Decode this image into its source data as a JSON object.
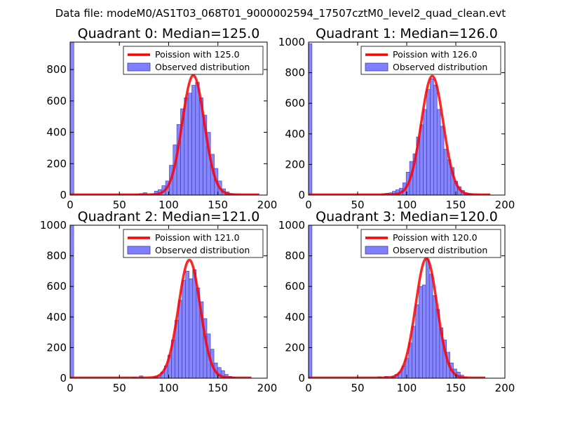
{
  "figure": {
    "suptitle": "Data file: modeM0/AS1T03_068T01_9000002594_17507cztM0_level2_quad_clean.evt",
    "colors": {
      "curve": "#ff0000",
      "bars": "#7f7fff",
      "bar_edge": "#3a3aa6"
    }
  },
  "chart_data": [
    {
      "type": "bar",
      "title": "Quadrant 0: Median=125.0",
      "xlim": [
        0,
        200
      ],
      "ylim": [
        0,
        975
      ],
      "xticks": [
        "0",
        "50",
        "100",
        "150",
        "200"
      ],
      "yticks": [
        0,
        200,
        400,
        600,
        800
      ],
      "legend": {
        "placement": "top-right",
        "curve_label": "Poission with 125.0",
        "bars_label": "Observed distribution"
      },
      "bin_width": 3.8,
      "bars": [
        {
          "x": 0,
          "h": 975
        },
        {
          "x": 66.5,
          "h": 5
        },
        {
          "x": 70.3,
          "h": 10
        },
        {
          "x": 74.1,
          "h": 15
        },
        {
          "x": 81.7,
          "h": 8
        },
        {
          "x": 85.5,
          "h": 25
        },
        {
          "x": 89.3,
          "h": 35
        },
        {
          "x": 93.1,
          "h": 60
        },
        {
          "x": 96.9,
          "h": 90
        },
        {
          "x": 100.7,
          "h": 190
        },
        {
          "x": 104.5,
          "h": 320
        },
        {
          "x": 108.3,
          "h": 450
        },
        {
          "x": 112.1,
          "h": 550
        },
        {
          "x": 115.9,
          "h": 620
        },
        {
          "x": 119.7,
          "h": 650
        },
        {
          "x": 123.5,
          "h": 700
        },
        {
          "x": 127.3,
          "h": 720
        },
        {
          "x": 131.1,
          "h": 620
        },
        {
          "x": 134.9,
          "h": 510
        },
        {
          "x": 138.7,
          "h": 400
        },
        {
          "x": 142.5,
          "h": 260
        },
        {
          "x": 146.3,
          "h": 170
        },
        {
          "x": 150.1,
          "h": 90
        },
        {
          "x": 153.9,
          "h": 40
        },
        {
          "x": 157.7,
          "h": 20
        },
        {
          "x": 161.5,
          "h": 8
        },
        {
          "x": 165.3,
          "h": 4
        }
      ],
      "curve": {
        "mu": 125,
        "peak": 760,
        "x_range": [
          0,
          192
        ]
      }
    },
    {
      "type": "bar",
      "title": "Quadrant 1: Median=126.0",
      "xlim": [
        0,
        200
      ],
      "ylim": [
        0,
        1000
      ],
      "xticks": [
        "0",
        "50",
        "100",
        "150",
        "200"
      ],
      "yticks": [
        0,
        200,
        400,
        600,
        800,
        1000
      ],
      "legend": {
        "placement": "top-right",
        "curve_label": "Poission with 126.0",
        "bars_label": "Observed distribution"
      },
      "bin_width": 3.5,
      "bars": [
        {
          "x": 0,
          "h": 990
        },
        {
          "x": 74.9,
          "h": 10
        },
        {
          "x": 78.4,
          "h": 12
        },
        {
          "x": 81.9,
          "h": 15
        },
        {
          "x": 85.4,
          "h": 25
        },
        {
          "x": 88.9,
          "h": 35
        },
        {
          "x": 92.4,
          "h": 45
        },
        {
          "x": 95.9,
          "h": 80
        },
        {
          "x": 99.4,
          "h": 150
        },
        {
          "x": 102.9,
          "h": 220
        },
        {
          "x": 106.4,
          "h": 270
        },
        {
          "x": 109.9,
          "h": 380
        },
        {
          "x": 113.4,
          "h": 460
        },
        {
          "x": 116.9,
          "h": 560
        },
        {
          "x": 120.4,
          "h": 690
        },
        {
          "x": 123.9,
          "h": 760
        },
        {
          "x": 127.4,
          "h": 720
        },
        {
          "x": 130.9,
          "h": 560
        },
        {
          "x": 134.4,
          "h": 450
        },
        {
          "x": 137.9,
          "h": 300
        },
        {
          "x": 141.4,
          "h": 230
        },
        {
          "x": 144.9,
          "h": 180
        },
        {
          "x": 148.4,
          "h": 90
        },
        {
          "x": 151.9,
          "h": 55
        },
        {
          "x": 155.4,
          "h": 30
        },
        {
          "x": 158.9,
          "h": 15
        },
        {
          "x": 162.4,
          "h": 10
        },
        {
          "x": 165.9,
          "h": 5
        }
      ],
      "curve": {
        "mu": 126,
        "peak": 775,
        "x_range": [
          0,
          185
        ]
      }
    },
    {
      "type": "bar",
      "title": "Quadrant 2: Median=121.0",
      "xlim": [
        0,
        200
      ],
      "ylim": [
        0,
        1000
      ],
      "xticks": [
        "0",
        "50",
        "100",
        "150",
        "200"
      ],
      "yticks": [
        0,
        200,
        400,
        600,
        800,
        1000
      ],
      "legend": {
        "placement": "top-right",
        "curve_label": "Poission with 121.0",
        "bars_label": "Observed distribution"
      },
      "bin_width": 3.6,
      "bars": [
        {
          "x": 0,
          "h": 1000
        },
        {
          "x": 63.2,
          "h": 5
        },
        {
          "x": 70.4,
          "h": 15
        },
        {
          "x": 84.8,
          "h": 10
        },
        {
          "x": 88.4,
          "h": 15
        },
        {
          "x": 92.0,
          "h": 40
        },
        {
          "x": 95.6,
          "h": 80
        },
        {
          "x": 99.2,
          "h": 150
        },
        {
          "x": 102.8,
          "h": 250
        },
        {
          "x": 106.4,
          "h": 380
        },
        {
          "x": 110.0,
          "h": 510
        },
        {
          "x": 113.6,
          "h": 640
        },
        {
          "x": 117.2,
          "h": 700
        },
        {
          "x": 120.8,
          "h": 650
        },
        {
          "x": 124.4,
          "h": 710
        },
        {
          "x": 128.0,
          "h": 590
        },
        {
          "x": 131.6,
          "h": 500
        },
        {
          "x": 135.2,
          "h": 390
        },
        {
          "x": 138.8,
          "h": 290
        },
        {
          "x": 142.4,
          "h": 190
        },
        {
          "x": 146.0,
          "h": 100
        },
        {
          "x": 149.6,
          "h": 70
        },
        {
          "x": 153.2,
          "h": 50
        },
        {
          "x": 156.8,
          "h": 25
        },
        {
          "x": 160.4,
          "h": 12
        },
        {
          "x": 164.0,
          "h": 6
        }
      ],
      "curve": {
        "mu": 121,
        "peak": 770,
        "x_range": [
          0,
          184
        ]
      }
    },
    {
      "type": "bar",
      "title": "Quadrant 3: Median=120.0",
      "xlim": [
        0,
        200
      ],
      "ylim": [
        0,
        1000
      ],
      "xticks": [
        "0",
        "50",
        "100",
        "150",
        "200"
      ],
      "yticks": [
        0,
        200,
        400,
        600,
        800,
        1000
      ],
      "legend": {
        "placement": "top-right",
        "curve_label": "Poission with 120.0",
        "bars_label": "Observed distribution"
      },
      "bin_width": 3.5,
      "bars": [
        {
          "x": 0,
          "h": 1000
        },
        {
          "x": 70.5,
          "h": 10
        },
        {
          "x": 77.5,
          "h": 12
        },
        {
          "x": 84.5,
          "h": 12
        },
        {
          "x": 88.0,
          "h": 25
        },
        {
          "x": 91.5,
          "h": 40
        },
        {
          "x": 95.0,
          "h": 80
        },
        {
          "x": 98.5,
          "h": 130
        },
        {
          "x": 102.0,
          "h": 230
        },
        {
          "x": 105.5,
          "h": 340
        },
        {
          "x": 109.0,
          "h": 480
        },
        {
          "x": 112.5,
          "h": 600
        },
        {
          "x": 116.0,
          "h": 610
        },
        {
          "x": 119.5,
          "h": 780
        },
        {
          "x": 123.0,
          "h": 680
        },
        {
          "x": 126.5,
          "h": 540
        },
        {
          "x": 130.0,
          "h": 450
        },
        {
          "x": 133.5,
          "h": 330
        },
        {
          "x": 137.0,
          "h": 250
        },
        {
          "x": 140.5,
          "h": 170
        },
        {
          "x": 144.0,
          "h": 100
        },
        {
          "x": 147.5,
          "h": 60
        },
        {
          "x": 151.0,
          "h": 40
        },
        {
          "x": 154.5,
          "h": 20
        },
        {
          "x": 158.0,
          "h": 8
        }
      ],
      "curve": {
        "mu": 120,
        "peak": 780,
        "x_range": [
          0,
          180
        ]
      }
    }
  ]
}
